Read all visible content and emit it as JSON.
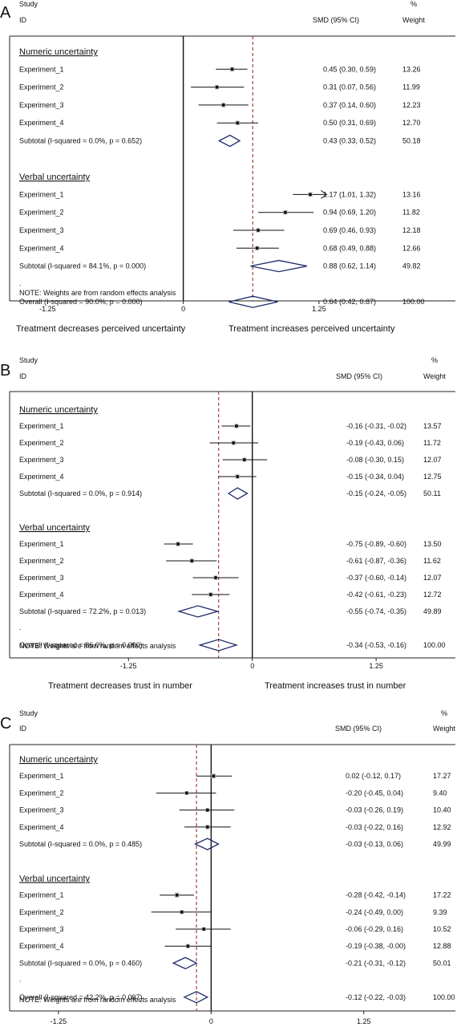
{
  "chart_data": [
    {
      "type": "forest",
      "panel_letter": "A",
      "header": {
        "study": "Study",
        "id": "ID",
        "smd": "SMD (95% CI)",
        "pct": "%",
        "weight": "Weight"
      },
      "xlim": [
        -1.6,
        2.3
      ],
      "ticks": [
        "-1.25",
        "0",
        "1.25"
      ],
      "tick_values": [
        -1.25,
        0,
        1.25
      ],
      "dashed_line": 0.64,
      "left_label": "Treatment decreases perceived uncertainty",
      "right_label": "Treatment increases perceived uncertainty",
      "note": "NOTE: Weights are from random effects analysis",
      "rows": [
        {
          "kind": "group",
          "label": "Numeric uncertainty"
        },
        {
          "kind": "study",
          "label": "Experiment_1",
          "est": 0.45,
          "lo": 0.3,
          "hi": 0.59,
          "ci": "0.45 (0.30, 0.59)",
          "weight": "13.26",
          "w": 13.26
        },
        {
          "kind": "study",
          "label": "Experiment_2",
          "est": 0.31,
          "lo": 0.07,
          "hi": 0.56,
          "ci": "0.31 (0.07, 0.56)",
          "weight": "11.99",
          "w": 11.99
        },
        {
          "kind": "study",
          "label": "Experiment_3",
          "est": 0.37,
          "lo": 0.14,
          "hi": 0.6,
          "ci": "0.37 (0.14, 0.60)",
          "weight": "12.23",
          "w": 12.23
        },
        {
          "kind": "study",
          "label": "Experiment_4",
          "est": 0.5,
          "lo": 0.31,
          "hi": 0.69,
          "ci": "0.50 (0.31, 0.69)",
          "weight": "12.70",
          "w": 12.7
        },
        {
          "kind": "subtotal",
          "label": "Subtotal  (I-squared = 0.0%, p = 0.652)",
          "est": 0.43,
          "lo": 0.33,
          "hi": 0.52,
          "ci": "0.43 (0.33, 0.52)",
          "weight": "50.18"
        },
        {
          "kind": "blank"
        },
        {
          "kind": "group",
          "label": "Verbal uncertainty"
        },
        {
          "kind": "study",
          "label": "Experiment_1",
          "est": 1.17,
          "lo": 1.01,
          "hi": 1.32,
          "ci": "1.17 (1.01, 1.32)",
          "weight": "13.16",
          "w": 13.16,
          "arrow": true
        },
        {
          "kind": "study",
          "label": "Experiment_2",
          "est": 0.94,
          "lo": 0.69,
          "hi": 1.2,
          "ci": "0.94 (0.69, 1.20)",
          "weight": "11.82",
          "w": 11.82
        },
        {
          "kind": "study",
          "label": "Experiment_3",
          "est": 0.69,
          "lo": 0.46,
          "hi": 0.93,
          "ci": "0.69 (0.46, 0.93)",
          "weight": "12.18",
          "w": 12.18
        },
        {
          "kind": "study",
          "label": "Experiment_4",
          "est": 0.68,
          "lo": 0.49,
          "hi": 0.88,
          "ci": "0.68 (0.49, 0.88)",
          "weight": "12.66",
          "w": 12.66
        },
        {
          "kind": "subtotal",
          "label": "Subtotal  (I-squared = 84.1%, p = 0.000)",
          "est": 0.88,
          "lo": 0.62,
          "hi": 1.14,
          "ci": "0.88 (0.62, 1.14)",
          "weight": "49.82"
        },
        {
          "kind": "dot",
          "label": "."
        },
        {
          "kind": "overall",
          "label": "Overall  (I-squared = 90.0%, p = 0.000)",
          "est": 0.64,
          "lo": 0.42,
          "hi": 0.87,
          "ci": "0.64 (0.42, 0.87)",
          "weight": "100.00"
        }
      ]
    },
    {
      "type": "forest",
      "panel_letter": "B",
      "header": {
        "study": "Study",
        "id": "ID",
        "smd": "SMD (95% CI)",
        "pct": "%",
        "weight": "Weight"
      },
      "xlim": [
        -2.45,
        2.05
      ],
      "ticks": [
        "-1.25",
        "0",
        "1.25"
      ],
      "tick_values": [
        -1.25,
        0,
        1.25
      ],
      "dashed_line": -0.34,
      "left_label": "Treatment decreases trust in number",
      "right_label": "Treatment increases trust in number",
      "note": "NOTE: Weights are from random effects analysis",
      "rows": [
        {
          "kind": "group",
          "label": "Numeric uncertainty"
        },
        {
          "kind": "study",
          "label": "Experiment_1",
          "est": -0.16,
          "lo": -0.31,
          "hi": -0.02,
          "ci": "-0.16 (-0.31, -0.02)",
          "weight": "13.57",
          "w": 13.57
        },
        {
          "kind": "study",
          "label": "Experiment_2",
          "est": -0.19,
          "lo": -0.43,
          "hi": 0.06,
          "ci": "-0.19 (-0.43, 0.06)",
          "weight": "11.72",
          "w": 11.72
        },
        {
          "kind": "study",
          "label": "Experiment_3",
          "est": -0.08,
          "lo": -0.3,
          "hi": 0.15,
          "ci": "-0.08 (-0.30, 0.15)",
          "weight": "12.07",
          "w": 12.07
        },
        {
          "kind": "study",
          "label": "Experiment_4",
          "est": -0.15,
          "lo": -0.34,
          "hi": 0.04,
          "ci": "-0.15 (-0.34, 0.04)",
          "weight": "12.75",
          "w": 12.75
        },
        {
          "kind": "subtotal",
          "label": "Subtotal  (I-squared = 0.0%, p = 0.914)",
          "est": -0.15,
          "lo": -0.24,
          "hi": -0.05,
          "ci": "-0.15 (-0.24, -0.05)",
          "weight": "50.11"
        },
        {
          "kind": "blank"
        },
        {
          "kind": "group",
          "label": "Verbal uncertainty"
        },
        {
          "kind": "study",
          "label": "Experiment_1",
          "est": -0.75,
          "lo": -0.89,
          "hi": -0.6,
          "ci": "-0.75 (-0.89, -0.60)",
          "weight": "13.50",
          "w": 13.5
        },
        {
          "kind": "study",
          "label": "Experiment_2",
          "est": -0.61,
          "lo": -0.87,
          "hi": -0.36,
          "ci": "-0.61 (-0.87, -0.36)",
          "weight": "11.62",
          "w": 11.62
        },
        {
          "kind": "study",
          "label": "Experiment_3",
          "est": -0.37,
          "lo": -0.6,
          "hi": -0.14,
          "ci": "-0.37 (-0.60, -0.14)",
          "weight": "12.07",
          "w": 12.07
        },
        {
          "kind": "study",
          "label": "Experiment_4",
          "est": -0.42,
          "lo": -0.61,
          "hi": -0.23,
          "ci": "-0.42 (-0.61, -0.23)",
          "weight": "12.72",
          "w": 12.72
        },
        {
          "kind": "subtotal",
          "label": "Subtotal  (I-squared = 72.2%, p = 0.013)",
          "est": -0.55,
          "lo": -0.74,
          "hi": -0.35,
          "ci": "-0.55 (-0.74, -0.35)",
          "weight": "49.89"
        },
        {
          "kind": "dot",
          "label": "."
        },
        {
          "kind": "overall",
          "label": "Overall  (I-squared = 86.0%, p = 0.000)",
          "est": -0.34,
          "lo": -0.53,
          "hi": -0.16,
          "ci": "-0.34 (-0.53, -0.16)",
          "weight": "100.00"
        }
      ]
    },
    {
      "type": "forest",
      "panel_letter": "C",
      "header": {
        "study": "Study",
        "id": "ID",
        "smd": "SMD (95% CI)",
        "pct": "%",
        "weight": "Weight"
      },
      "xlim": [
        -1.65,
        2.0
      ],
      "ticks": [
        "-1.25",
        "0",
        "1.25"
      ],
      "tick_values": [
        -1.25,
        0,
        1.25
      ],
      "dashed_line": -0.12,
      "left_label": "",
      "right_label": "",
      "note": "NOTE: Weights are from random effects analysis",
      "rows": [
        {
          "kind": "group",
          "label": "Numeric uncertainty"
        },
        {
          "kind": "study",
          "label": "Experiment_1",
          "est": 0.02,
          "lo": -0.12,
          "hi": 0.17,
          "ci": "0.02 (-0.12, 0.17)",
          "weight": "17.27",
          "w": 17.27
        },
        {
          "kind": "study",
          "label": "Experiment_2",
          "est": -0.2,
          "lo": -0.45,
          "hi": 0.04,
          "ci": "-0.20 (-0.45, 0.04)",
          "weight": "9.40",
          "w": 9.4
        },
        {
          "kind": "study",
          "label": "Experiment_3",
          "est": -0.03,
          "lo": -0.26,
          "hi": 0.19,
          "ci": "-0.03 (-0.26, 0.19)",
          "weight": "10.40",
          "w": 10.4
        },
        {
          "kind": "study",
          "label": "Experiment_4",
          "est": -0.03,
          "lo": -0.22,
          "hi": 0.16,
          "ci": "-0.03 (-0.22, 0.16)",
          "weight": "12.92",
          "w": 12.92
        },
        {
          "kind": "subtotal",
          "label": "Subtotal  (I-squared = 0.0%, p = 0.485)",
          "est": -0.03,
          "lo": -0.13,
          "hi": 0.06,
          "ci": "-0.03 (-0.13, 0.06)",
          "weight": "49.99"
        },
        {
          "kind": "blank"
        },
        {
          "kind": "group",
          "label": "Verbal uncertainty"
        },
        {
          "kind": "study",
          "label": "Experiment_1",
          "est": -0.28,
          "lo": -0.42,
          "hi": -0.14,
          "ci": "-0.28 (-0.42, -0.14)",
          "weight": "17.22",
          "w": 17.22
        },
        {
          "kind": "study",
          "label": "Experiment_2",
          "est": -0.24,
          "lo": -0.49,
          "hi": 0.0,
          "ci": "-0.24 (-0.49, 0.00)",
          "weight": "9.39",
          "w": 9.39
        },
        {
          "kind": "study",
          "label": "Experiment_3",
          "est": -0.06,
          "lo": -0.29,
          "hi": 0.16,
          "ci": "-0.06 (-0.29, 0.16)",
          "weight": "10.52",
          "w": 10.52
        },
        {
          "kind": "study",
          "label": "Experiment_4",
          "est": -0.19,
          "lo": -0.38,
          "hi": -0.0,
          "ci": "-0.19 (-0.38, -0.00)",
          "weight": "12.88",
          "w": 12.88
        },
        {
          "kind": "subtotal",
          "label": "Subtotal  (I-squared = 0.0%, p = 0.460)",
          "est": -0.21,
          "lo": -0.31,
          "hi": -0.12,
          "ci": "-0.21 (-0.31, -0.12)",
          "weight": "50.01"
        },
        {
          "kind": "dot",
          "label": "."
        },
        {
          "kind": "overall",
          "label": "Overall  (I-squared = 42.2%, p = 0.097)",
          "est": -0.12,
          "lo": -0.22,
          "hi": -0.03,
          "ci": "-0.12 (-0.22, -0.03)",
          "weight": "100.00"
        }
      ]
    }
  ],
  "colors": {
    "diamond": "#1f2d6b",
    "dashed": "#a0302c",
    "ink": "#111111",
    "weight_box": "#b8b8b8"
  }
}
